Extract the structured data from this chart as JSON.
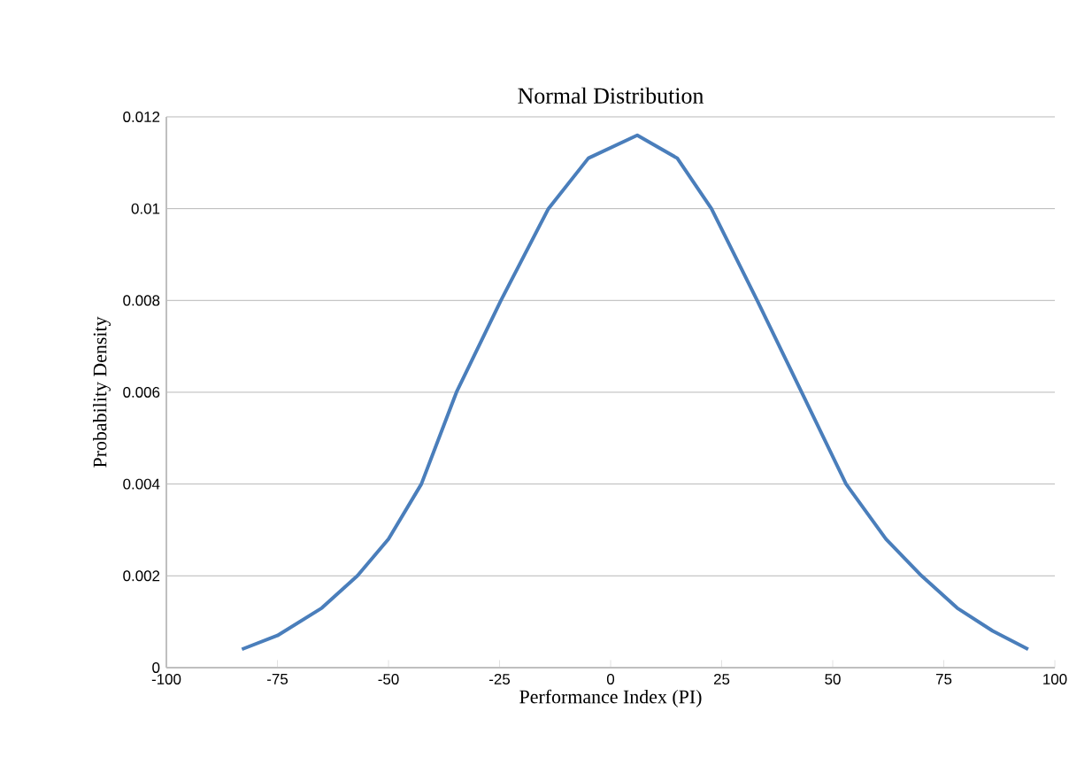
{
  "chart_data": {
    "type": "line",
    "title": "Normal Distribution",
    "xlabel": "Performance Index (PI)",
    "ylabel": "Probability Density",
    "xlim": [
      -100,
      100
    ],
    "xticks": [
      -100,
      -75,
      -50,
      -25,
      0,
      25,
      50,
      75,
      100
    ],
    "ylim": [
      0,
      0.012
    ],
    "yticks": [
      0,
      0.002,
      0.004,
      0.006,
      0.008,
      0.01,
      0.012
    ],
    "grid": "y",
    "marker": "none",
    "line_style": "solid",
    "series": [
      {
        "color": "#4a7ebb",
        "x": [
          -83,
          -75,
          -65,
          -57,
          -50,
          -42.6,
          -34.7,
          -24.7,
          -14,
          -5,
          6,
          15,
          22.7,
          33,
          43,
          53,
          62,
          70,
          78,
          86,
          94
        ],
        "values": [
          0.0004,
          0.0007,
          0.0013,
          0.002,
          0.0028,
          0.004,
          0.006,
          0.008,
          0.01,
          0.0111,
          0.0116,
          0.0111,
          0.01,
          0.008,
          0.006,
          0.004,
          0.0028,
          0.002,
          0.0013,
          0.0008,
          0.0004
        ]
      }
    ]
  }
}
